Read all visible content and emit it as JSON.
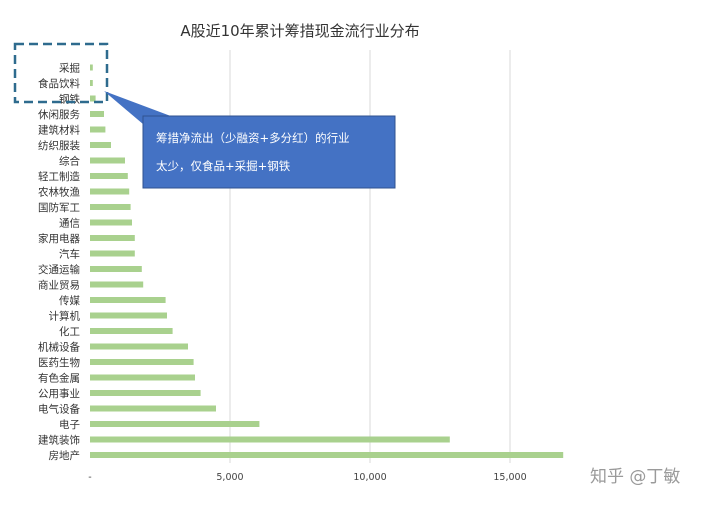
{
  "chart_data": {
    "type": "bar",
    "orientation": "horizontal",
    "title": "A股近10年累计筹措现金流行业分布",
    "categories": [
      "房地产",
      "建筑装饰",
      "电子",
      "电气设备",
      "公用事业",
      "有色金属",
      "医药生物",
      "机械设备",
      "化工",
      "计算机",
      "传媒",
      "商业贸易",
      "交通运输",
      "汽车",
      "家用电器",
      "通信",
      "国防军工",
      "农林牧渔",
      "轻工制造",
      "综合",
      "纺织服装",
      "建筑材料",
      "休闲服务",
      "钢铁",
      "食品饮料",
      "采掘"
    ],
    "values": [
      16900,
      12850,
      6050,
      4500,
      3950,
      3750,
      3700,
      3500,
      2950,
      2750,
      2700,
      1900,
      1850,
      1600,
      1600,
      1500,
      1450,
      1400,
      1350,
      1250,
      750,
      550,
      500,
      200,
      100,
      100
    ],
    "xlim": [
      0,
      17500
    ],
    "xticks": [
      0,
      5000,
      10000,
      15000
    ],
    "xtick_labels": [
      "-",
      "5,000",
      "10,000",
      "15,000"
    ],
    "grid": "vertical",
    "legend": "none",
    "bar_color": "#a9d18e",
    "grid_color": "#d9d9d9"
  },
  "annotation": {
    "line1": "筹措净流出（少融资+多分红）的行业",
    "line2": "太少，仅食品+采掘+钢铁",
    "box_color": "#4472c4",
    "highlight_border_color": "#2e6b8e"
  },
  "watermark": "知乎 @丁敏"
}
